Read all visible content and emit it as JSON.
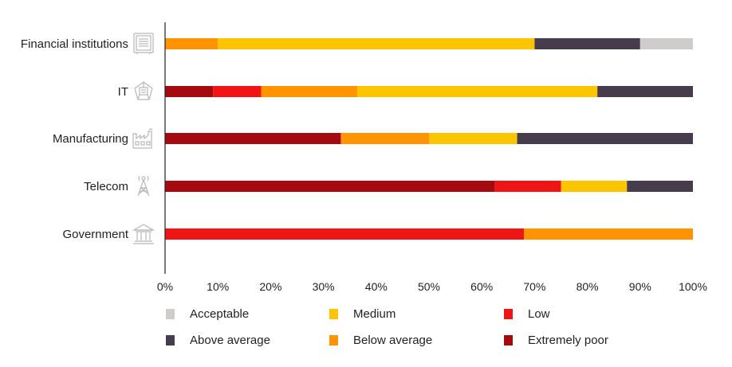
{
  "chart_data": {
    "type": "bar",
    "orientation": "horizontal",
    "stacked": true,
    "title": "",
    "xlabel": "",
    "ylabel": "",
    "xlim": [
      0,
      100
    ],
    "x_ticks": [
      "0%",
      "10%",
      "20%",
      "30%",
      "40%",
      "50%",
      "60%",
      "70%",
      "80%",
      "90%",
      "100%"
    ],
    "categories": [
      "Financial institutions",
      "IT",
      "Manufacturing",
      "Telecom",
      "Government"
    ],
    "series": [
      {
        "name": "Extremely poor",
        "color": "#a50a0f",
        "values": [
          0,
          9.1,
          33.3,
          62.5,
          0
        ]
      },
      {
        "name": "Low",
        "color": "#f01414",
        "values": [
          0,
          9.1,
          0,
          12.5,
          68.0
        ]
      },
      {
        "name": "Below average",
        "color": "#ff9400",
        "values": [
          10,
          18.2,
          16.7,
          0,
          32.0
        ]
      },
      {
        "name": "Medium",
        "color": "#fdc400",
        "values": [
          60,
          45.5,
          16.7,
          12.5,
          0
        ]
      },
      {
        "name": "Above average",
        "color": "#463c4b",
        "values": [
          20,
          18.1,
          33.3,
          12.5,
          0
        ]
      },
      {
        "name": "Acceptable",
        "color": "#cfcccc",
        "values": [
          10,
          0,
          0,
          0,
          0
        ]
      }
    ],
    "category_icons": [
      "bank-vault-icon",
      "circuit-chip-icon",
      "factory-icon",
      "radio-tower-icon",
      "government-building-icon"
    ],
    "legend": {
      "placement": "bottom",
      "entries": [
        {
          "name": "Acceptable",
          "color": "#cfcccc"
        },
        {
          "name": "Medium",
          "color": "#fdc400"
        },
        {
          "name": "Low",
          "color": "#f01414"
        },
        {
          "name": "Above average",
          "color": "#463c4b"
        },
        {
          "name": "Below average",
          "color": "#ff9400"
        },
        {
          "name": "Extremely poor",
          "color": "#a50a0f"
        }
      ]
    }
  }
}
